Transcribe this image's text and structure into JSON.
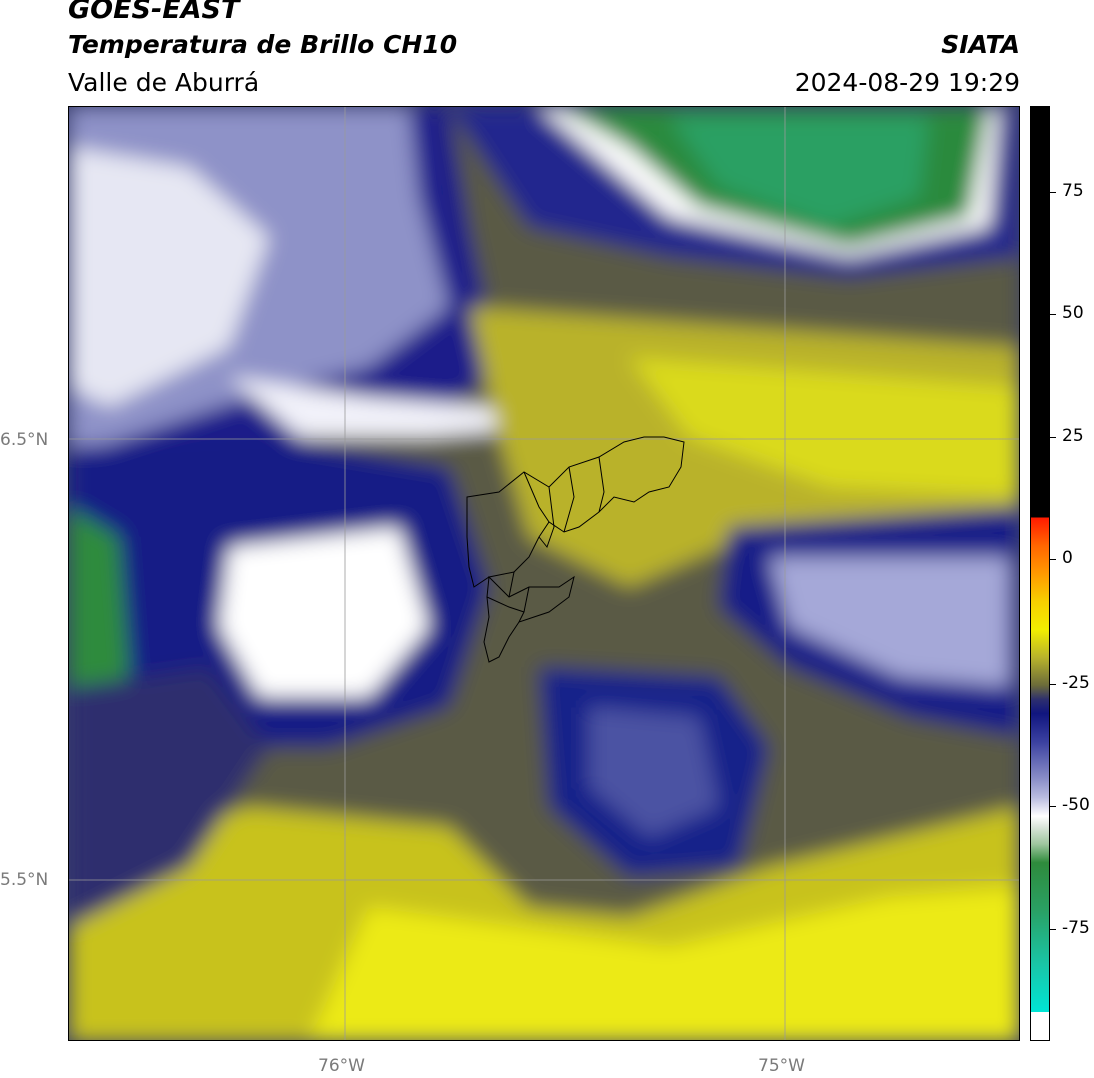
{
  "header": {
    "satellite": "GOES-EAST",
    "product": "Temperatura de Brillo CH10",
    "region": "Valle de Aburrá",
    "agency": "SIATA",
    "timestamp": "2024-08-29 19:29"
  },
  "map": {
    "lat_labels": [
      "6.5°N",
      "5.5°N"
    ],
    "lon_labels": [
      "76°W",
      "75°W"
    ]
  },
  "colorbar": {
    "tick_labels": [
      "75",
      "50",
      "25",
      "0",
      "-25",
      "-50",
      "-75"
    ],
    "colors": {
      "black": "#000000",
      "red": "#ff1a00",
      "orange": "#ff9900",
      "yellow": "#f2ee00",
      "olive": "#6b6b3a",
      "navy": "#10157f",
      "lavender": "#b9bce0",
      "white": "#ffffff",
      "green": "#2e8b3c",
      "cyan": "#00e5d5"
    }
  }
}
